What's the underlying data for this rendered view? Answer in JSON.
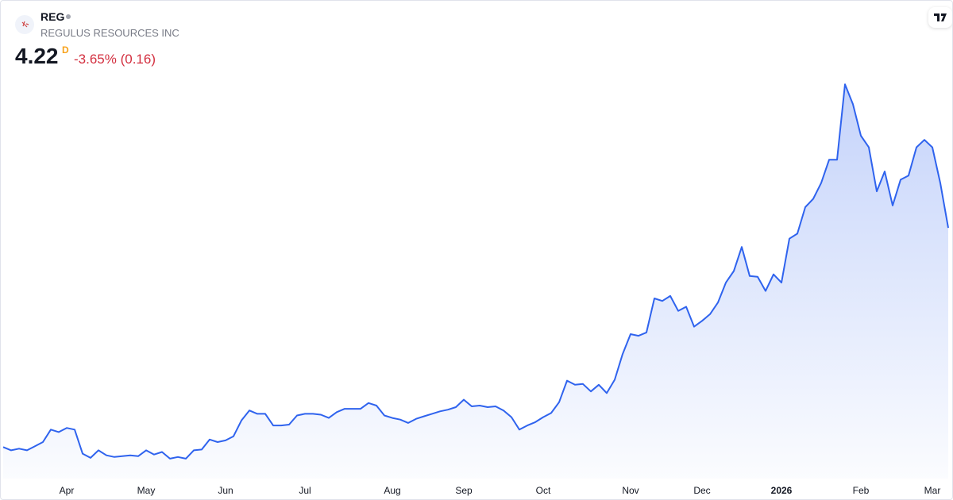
{
  "header": {
    "symbol": "REG",
    "name": "REGULUS RESOURCES INC",
    "price": "4.22",
    "interval": "D",
    "change": "-3.65% (0.16)"
  },
  "chart_data": {
    "type": "area",
    "color": "#2f63ee",
    "categories": [
      null,
      null,
      null,
      null,
      null,
      null,
      null,
      null,
      "Apr",
      null,
      null,
      null,
      null,
      null,
      null,
      null,
      null,
      null,
      "May",
      null,
      null,
      null,
      null,
      null,
      null,
      null,
      null,
      null,
      "Jun",
      null,
      null,
      null,
      null,
      null,
      null,
      null,
      null,
      null,
      "Jul",
      null,
      null,
      null,
      null,
      null,
      null,
      null,
      null,
      null,
      null,
      "Aug",
      null,
      null,
      null,
      null,
      null,
      null,
      null,
      null,
      "Sep",
      null,
      null,
      null,
      null,
      null,
      null,
      null,
      null,
      null,
      "Oct",
      null,
      null,
      null,
      null,
      null,
      null,
      null,
      null,
      null,
      null,
      "Nov",
      null,
      null,
      null,
      null,
      null,
      null,
      null,
      null,
      "Dec",
      null,
      null,
      null,
      null,
      null,
      null,
      null,
      null,
      null,
      "2026",
      null,
      null,
      null,
      null,
      null,
      null,
      null,
      null,
      null,
      "Feb",
      null,
      null,
      null,
      null,
      null,
      null,
      null,
      null,
      "Mar",
      null,
      null
    ],
    "values": [
      1.58,
      1.54,
      1.56,
      1.54,
      1.59,
      1.64,
      1.79,
      1.76,
      1.81,
      1.79,
      1.5,
      1.45,
      1.54,
      1.48,
      1.46,
      1.47,
      1.48,
      1.47,
      1.54,
      1.49,
      1.52,
      1.44,
      1.46,
      1.44,
      1.54,
      1.55,
      1.67,
      1.64,
      1.66,
      1.71,
      1.9,
      2.02,
      1.98,
      1.98,
      1.84,
      1.84,
      1.85,
      1.96,
      1.98,
      1.98,
      1.97,
      1.93,
      2.0,
      2.04,
      2.04,
      2.04,
      2.11,
      2.08,
      1.96,
      1.93,
      1.91,
      1.87,
      1.92,
      1.95,
      1.98,
      2.01,
      2.03,
      2.06,
      2.15,
      2.07,
      2.08,
      2.06,
      2.07,
      2.02,
      1.94,
      1.79,
      1.84,
      1.88,
      1.94,
      1.99,
      2.12,
      2.38,
      2.33,
      2.34,
      2.25,
      2.33,
      2.23,
      2.39,
      2.7,
      2.94,
      2.92,
      2.96,
      3.37,
      3.34,
      3.4,
      3.22,
      3.27,
      3.03,
      3.1,
      3.18,
      3.32,
      3.56,
      3.7,
      3.99,
      3.64,
      3.63,
      3.46,
      3.66,
      3.56,
      4.09,
      4.15,
      4.47,
      4.57,
      4.76,
      5.04,
      5.04,
      5.95,
      5.71,
      5.33,
      5.19,
      4.66,
      4.9,
      4.49,
      4.8,
      4.85,
      5.19,
      5.28,
      5.19,
      4.76,
      4.22
    ],
    "ylim": [
      1.2,
      6.2
    ]
  }
}
